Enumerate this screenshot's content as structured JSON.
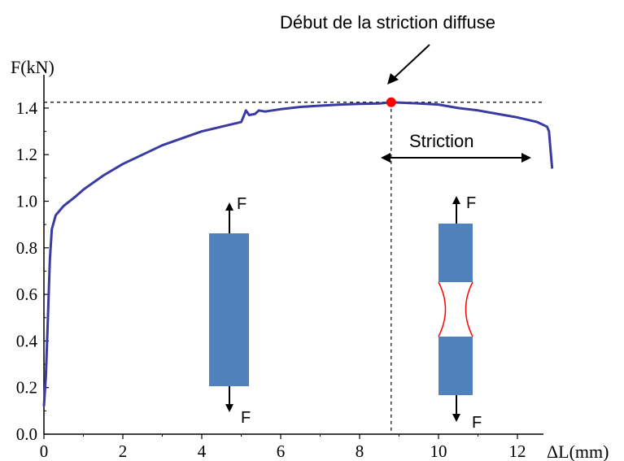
{
  "chart_data": {
    "type": "line",
    "ylabel": "F(kN)",
    "xlabel": "ΔL(mm)",
    "xlim": [
      0,
      13
    ],
    "ylim": [
      0,
      1.45
    ],
    "x_ticks": [
      0,
      2,
      4,
      6,
      8,
      10,
      12
    ],
    "x_tick_labels": [
      "0",
      "2",
      "4",
      "6",
      "8",
      "10",
      "12"
    ],
    "y_ticks": [
      0.0,
      0.2,
      0.4,
      0.6,
      0.8,
      1.0,
      1.2,
      1.4
    ],
    "y_tick_labels": [
      "0.0",
      "0.2",
      "0.4",
      "0.6",
      "0.8",
      "1.0",
      "1.2",
      "1.4"
    ],
    "series": [
      {
        "color": "#3a3ba0",
        "points": [
          [
            0.0,
            0.12
          ],
          [
            0.05,
            0.25
          ],
          [
            0.1,
            0.5
          ],
          [
            0.15,
            0.75
          ],
          [
            0.2,
            0.88
          ],
          [
            0.3,
            0.94
          ],
          [
            0.5,
            0.98
          ],
          [
            0.8,
            1.02
          ],
          [
            1.0,
            1.05
          ],
          [
            1.5,
            1.11
          ],
          [
            2.0,
            1.16
          ],
          [
            2.5,
            1.2
          ],
          [
            3.0,
            1.24
          ],
          [
            3.5,
            1.27
          ],
          [
            4.0,
            1.3
          ],
          [
            4.5,
            1.32
          ],
          [
            5.0,
            1.34
          ],
          [
            5.05,
            1.36
          ],
          [
            5.12,
            1.39
          ],
          [
            5.2,
            1.37
          ],
          [
            5.35,
            1.375
          ],
          [
            5.45,
            1.39
          ],
          [
            5.6,
            1.385
          ],
          [
            6.0,
            1.395
          ],
          [
            6.5,
            1.405
          ],
          [
            7.0,
            1.41
          ],
          [
            7.5,
            1.415
          ],
          [
            8.0,
            1.418
          ],
          [
            8.5,
            1.42
          ],
          [
            8.8,
            1.425
          ],
          [
            9.5,
            1.42
          ],
          [
            10.0,
            1.415
          ],
          [
            10.5,
            1.4
          ],
          [
            11.0,
            1.39
          ],
          [
            11.5,
            1.375
          ],
          [
            12.0,
            1.36
          ],
          [
            12.5,
            1.34
          ],
          [
            12.75,
            1.32
          ],
          [
            12.8,
            1.3
          ],
          [
            12.85,
            1.2
          ],
          [
            12.88,
            1.14
          ]
        ]
      }
    ],
    "max_point": {
      "x": 8.8,
      "y": 1.425,
      "color": "#ff0000"
    },
    "reference_lines": {
      "y": 1.425,
      "x": 8.8
    },
    "annotations": {
      "onset": "Début de la striction diffuse",
      "striction": "Striction",
      "force_label": "F"
    },
    "grid": false
  },
  "colors": {
    "curve": "#3a3ba0",
    "specimen": "#4f81bd",
    "neck": "#ff0000",
    "marker": "#ff0000"
  }
}
